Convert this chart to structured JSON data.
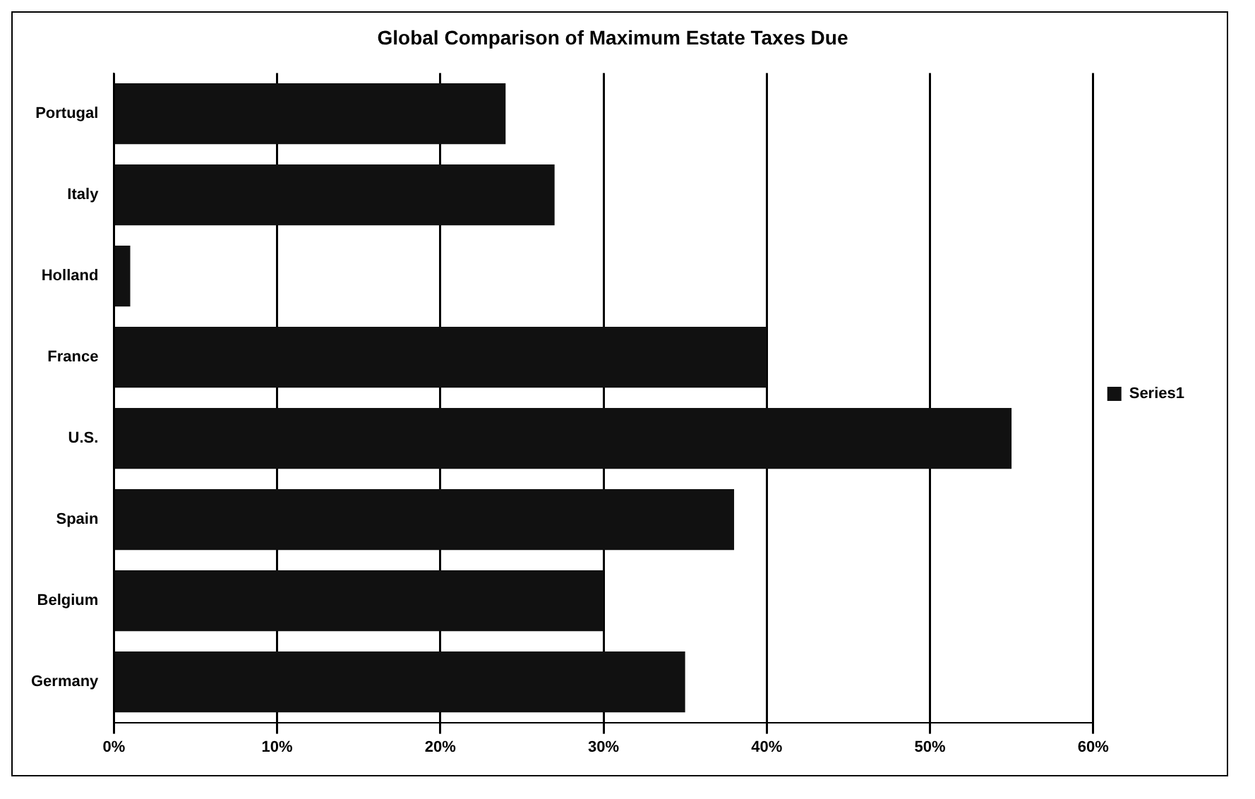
{
  "chart_data": {
    "type": "bar",
    "orientation": "horizontal",
    "title": "Global Comparison of Maximum Estate Taxes Due",
    "categories": [
      "Portugal",
      "Italy",
      "Holland",
      "France",
      "U.S.",
      "Spain",
      "Belgium",
      "Germany"
    ],
    "series": [
      {
        "name": "Series1",
        "color": "#111111",
        "values": [
          24,
          27,
          1,
          40,
          55,
          38,
          30,
          35
        ]
      }
    ],
    "xlim": [
      0,
      60
    ],
    "xticks": [
      {
        "value": 0,
        "label": "0%"
      },
      {
        "value": 10,
        "label": "10%"
      },
      {
        "value": 20,
        "label": "20%"
      },
      {
        "value": 30,
        "label": "30%"
      },
      {
        "value": 40,
        "label": "40%"
      },
      {
        "value": 50,
        "label": "50%"
      },
      {
        "value": 60,
        "label": "60%"
      }
    ],
    "grid": "x",
    "legend": "right"
  }
}
